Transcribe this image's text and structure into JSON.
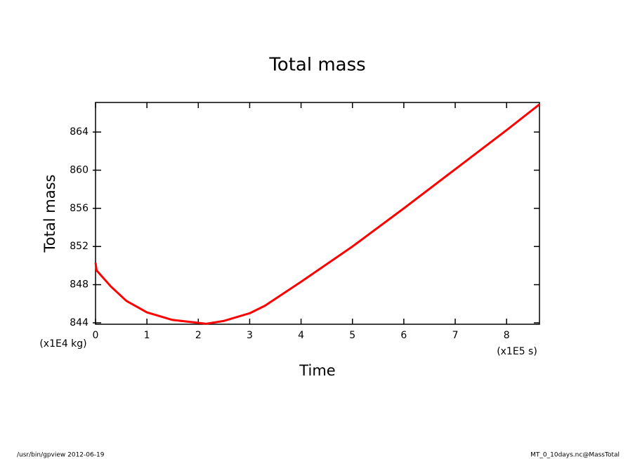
{
  "chart_data": {
    "type": "line",
    "title": "Total mass",
    "x_label": "Time",
    "y_label": "Total mass",
    "x_unit": "(x1E5 s)",
    "y_unit": "(x1E4 kg)",
    "footer_left": "/usr/bin/gpview  2012-06-19",
    "footer_right": "MT_0_10days.nc@MassTotal",
    "x": [
      0,
      0.02,
      0.3,
      0.6,
      1.0,
      1.5,
      2.0,
      2.15,
      2.5,
      3.0,
      3.3,
      4,
      5,
      6,
      7,
      8,
      8.64
    ],
    "series": [
      {
        "name": "Total mass",
        "color": "#ff0000",
        "values": [
          850.3,
          849.5,
          847.8,
          846.3,
          845.1,
          844.3,
          844.0,
          843.9,
          844.2,
          845.0,
          845.8,
          848.3,
          852.0,
          856.0,
          860.1,
          864.2,
          866.9
        ]
      }
    ],
    "xlim": [
      0,
      8.64
    ],
    "ylim": [
      843.85,
      867.1
    ],
    "xticks": [
      0,
      1,
      2,
      3,
      4,
      5,
      6,
      7,
      8
    ],
    "yticks": [
      844,
      848,
      852,
      856,
      860,
      864
    ]
  }
}
